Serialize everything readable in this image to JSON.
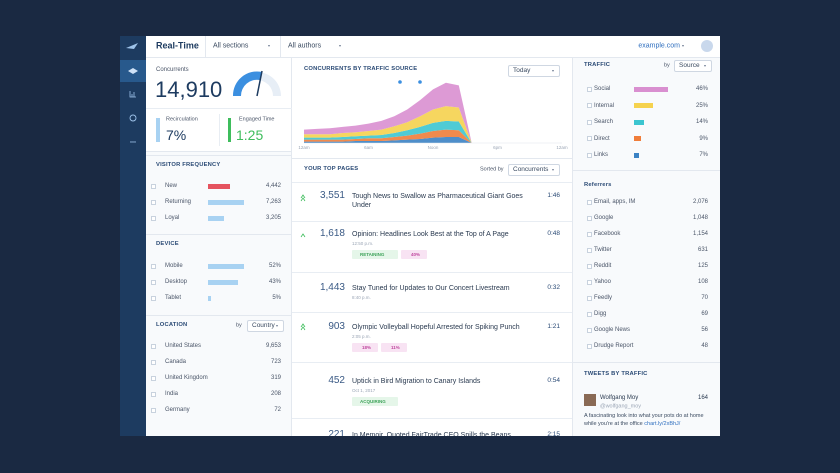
{
  "topbar": {
    "title": "Real-Time",
    "sections": "All sections",
    "authors": "All authors",
    "site": "example.com"
  },
  "summary": {
    "concurrents_label": "Concurrents",
    "concurrents": "14,910",
    "recirculation_label": "Recirculation",
    "recirculation": "7%",
    "engaged_label": "Engaged Time",
    "engaged": "1:25"
  },
  "visitor_frequency": {
    "title": "VISITOR FREQUENCY",
    "rows": [
      {
        "label": "New",
        "value": "4,442",
        "color": "#e5535f"
      },
      {
        "label": "Returning",
        "value": "7,263",
        "color": "#a8d2f2"
      },
      {
        "label": "Loyal",
        "value": "3,205",
        "color": "#a8d2f2"
      }
    ]
  },
  "device": {
    "title": "DEVICE",
    "rows": [
      {
        "label": "Mobile",
        "value": "52%"
      },
      {
        "label": "Desktop",
        "value": "43%"
      },
      {
        "label": "Tablet",
        "value": "5%"
      }
    ]
  },
  "location": {
    "title": "LOCATION",
    "by": "by",
    "sort": "Country",
    "rows": [
      {
        "label": "United States",
        "value": "9,653"
      },
      {
        "label": "Canada",
        "value": "723"
      },
      {
        "label": "United Kingdom",
        "value": "319"
      },
      {
        "label": "India",
        "value": "208"
      },
      {
        "label": "Germany",
        "value": "72"
      }
    ]
  },
  "chart_data": {
    "type": "area",
    "title": "CONCURRENTS BY TRAFFIC SOURCE",
    "range": "Today",
    "categories": [
      "12am",
      null,
      null,
      null,
      null,
      "6am",
      null,
      null,
      null,
      null,
      "Noon",
      null,
      null,
      null,
      null,
      "6pm",
      null,
      null,
      null,
      null,
      "12am"
    ],
    "ylim": [
      0,
      100
    ],
    "stacked": true,
    "series": [
      {
        "color": "#3b82c4",
        "values": [
          2,
          2,
          2,
          2,
          3,
          3,
          3,
          4,
          5,
          6,
          8,
          9,
          9,
          0,
          null,
          null,
          null,
          null,
          null,
          null,
          null
        ]
      },
      {
        "color": "#f07d3a",
        "values": [
          3,
          3,
          3,
          3,
          3,
          4,
          4,
          5,
          6,
          8,
          10,
          11,
          10,
          0,
          null,
          null,
          null,
          null,
          null,
          null,
          null
        ]
      },
      {
        "color": "#3cc5d0",
        "values": [
          3,
          3,
          3,
          4,
          4,
          4,
          5,
          6,
          8,
          10,
          12,
          13,
          13,
          0,
          null,
          null,
          null,
          null,
          null,
          null,
          null
        ]
      },
      {
        "color": "#f5d24e",
        "values": [
          5,
          5,
          5,
          6,
          6,
          7,
          8,
          10,
          12,
          16,
          20,
          22,
          21,
          0,
          null,
          null,
          null,
          null,
          null,
          null,
          null
        ]
      },
      {
        "color": "#d98fd0",
        "values": [
          7,
          8,
          9,
          9,
          10,
          11,
          13,
          15,
          19,
          24,
          30,
          35,
          33,
          0,
          null,
          null,
          null,
          null,
          null,
          null,
          null
        ]
      }
    ]
  },
  "top_pages": {
    "title": "YOUR TOP PAGES",
    "sorted_by": "Sorted by",
    "sort": "Concurrents",
    "rows": [
      {
        "concurrents": "3,551",
        "headline": "Tough News to Swallow as Pharmaceutical Giant Goes Under",
        "engaged": "1:46"
      },
      {
        "concurrents": "1,618",
        "headline": "Opinion: Headlines Look Best at the Top of A Page",
        "time": "12:50 p.m.",
        "engaged": "0:48",
        "tags": [
          "RETAINING",
          "40%"
        ]
      },
      {
        "concurrents": "1,443",
        "headline": "Stay Tuned for Updates to Our Concert Livestream",
        "time": "8:40 p.m.",
        "engaged": "0:32"
      },
      {
        "concurrents": "903",
        "headline": "Olympic Volleyball Hopeful Arrested for Spiking Punch",
        "time": "2:05 p.m.",
        "engaged": "1:21",
        "tags": [
          "18%",
          "11%"
        ]
      },
      {
        "concurrents": "452",
        "headline": "Uptick in Bird Migration to Canary Islands",
        "time": "Oct 1, 2017",
        "engaged": "0:54",
        "tags": [
          "ACQUIRING"
        ]
      },
      {
        "concurrents": "221",
        "headline": "In Memoir, Quoted FairTrade CEO Spills the Beans",
        "engaged": "2:15"
      }
    ]
  },
  "traffic": {
    "title": "TRAFFIC",
    "by": "by",
    "sort": "Source",
    "rows": [
      {
        "label": "Social",
        "value": "46%",
        "color": "#d98fd0"
      },
      {
        "label": "Internal",
        "value": "25%",
        "color": "#f5d24e"
      },
      {
        "label": "Search",
        "value": "14%",
        "color": "#3cc5d0"
      },
      {
        "label": "Direct",
        "value": "9%",
        "color": "#f07d3a"
      },
      {
        "label": "Links",
        "value": "7%",
        "color": "#3b82c4"
      }
    ]
  },
  "referrers": {
    "title": "Referrers",
    "rows": [
      {
        "label": "Email, apps, IM",
        "value": "2,076"
      },
      {
        "label": "Google",
        "value": "1,048"
      },
      {
        "label": "Facebook",
        "value": "1,154"
      },
      {
        "label": "Twitter",
        "value": "631"
      },
      {
        "label": "Reddit",
        "value": "125"
      },
      {
        "label": "Yahoo",
        "value": "108"
      },
      {
        "label": "Feedly",
        "value": "70"
      },
      {
        "label": "Digg",
        "value": "69"
      },
      {
        "label": "Google News",
        "value": "56"
      },
      {
        "label": "Drudge Report",
        "value": "48"
      }
    ]
  },
  "tweets": {
    "title": "TWEETS BY TRAFFIC",
    "name": "Wolfgang Moy",
    "handle": "@wolfgang_moy",
    "count": "164",
    "text": "A fascinating look into what your pots do at home while you're at the office",
    "link": "chart.ly/2xBhJ/"
  }
}
